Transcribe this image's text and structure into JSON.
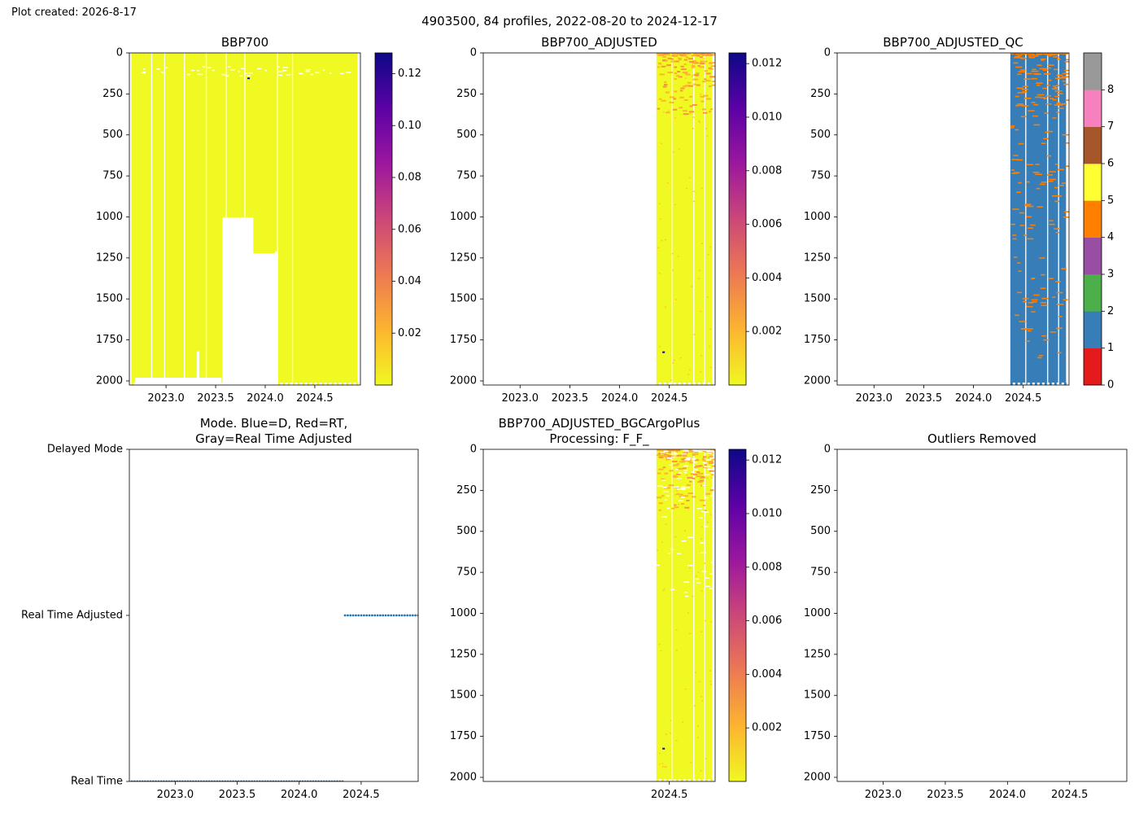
{
  "header": {
    "created": "Plot created: 2026-8-17",
    "suptitle": "4903500, 84 profiles, 2022-08-20 to 2024-12-17"
  },
  "colors": {
    "plasma_r": [
      "#f0f921",
      "#fdb42f",
      "#ed7953",
      "#cc4778",
      "#9c179e",
      "#5c01a6",
      "#0d0887"
    ],
    "qc": [
      "#e41a1c",
      "#377eb8",
      "#4daf4a",
      "#984ea3",
      "#ff7f00",
      "#ffff33",
      "#a65628",
      "#f781bf",
      "#999999"
    ],
    "mode_dots": "#1f77b4",
    "qc_flag_marks": "#ff7f00"
  },
  "chart_data": [
    {
      "id": "bbp700",
      "type": "heatmap",
      "title": "BBP700",
      "x_ticks": [
        "2023.0",
        "2023.5",
        "2024.0",
        "2024.5"
      ],
      "xlim": [
        2022.63,
        2024.96
      ],
      "y_ticks": [
        "0",
        "250",
        "500",
        "750",
        "1000",
        "1250",
        "1500",
        "1750",
        "2000"
      ],
      "ylim": [
        2025,
        0
      ],
      "data_x": [
        2022.65,
        2024.93
      ],
      "colorbar": {
        "ticks": [
          "0.02",
          "0.04",
          "0.06",
          "0.08",
          "0.10",
          "0.12"
        ],
        "min": 0.0,
        "max": 0.128,
        "colormap": "plasma_r"
      }
    },
    {
      "id": "bbp700_adjusted",
      "type": "heatmap",
      "title": "BBP700_ADJUSTED",
      "x_ticks": [
        "2023.0",
        "2023.5",
        "2024.0",
        "2024.5"
      ],
      "xlim": [
        2022.63,
        2024.96
      ],
      "y_ticks": [
        "0",
        "250",
        "500",
        "750",
        "1000",
        "1250",
        "1500",
        "1750",
        "2000"
      ],
      "ylim": [
        2025,
        0
      ],
      "data_x": [
        2024.37,
        2024.93
      ],
      "colorbar": {
        "ticks": [
          "0.002",
          "0.004",
          "0.006",
          "0.008",
          "0.010",
          "0.012"
        ],
        "min": 0.0,
        "max": 0.0124,
        "colormap": "plasma_r"
      }
    },
    {
      "id": "bbp700_adjusted_qc",
      "type": "heatmap",
      "title": "BBP700_ADJUSTED_QC",
      "x_ticks": [
        "2023.0",
        "2023.5",
        "2024.0",
        "2024.5"
      ],
      "xlim": [
        2022.63,
        2024.96
      ],
      "y_ticks": [
        "0",
        "250",
        "500",
        "750",
        "1000",
        "1250",
        "1500",
        "1750",
        "2000"
      ],
      "ylim": [
        2025,
        0
      ],
      "data_x": [
        2024.37,
        2024.93
      ],
      "colorbar": {
        "ticks": [
          "0",
          "1",
          "2",
          "3",
          "4",
          "5",
          "6",
          "7",
          "8"
        ],
        "min": 0,
        "max": 9,
        "colormap": "qc"
      }
    },
    {
      "id": "mode",
      "type": "scatter",
      "title_lines": [
        "Mode. Blue=D, Red=RT,",
        "Gray=Real Time Adjusted"
      ],
      "x_ticks": [
        "2023.0",
        "2023.5",
        "2024.0",
        "2024.5"
      ],
      "xlim": [
        2022.63,
        2024.96
      ],
      "y_categories": [
        "Real Time",
        "Real Time Adjusted",
        "Delayed Mode"
      ],
      "series": [
        {
          "category": "Real Time",
          "x_range": [
            2022.65,
            2024.35
          ]
        },
        {
          "category": "Real Time Adjusted",
          "x_range": [
            2024.37,
            2024.96
          ]
        }
      ]
    },
    {
      "id": "bgcargoplus",
      "type": "heatmap",
      "title_lines": [
        "BBP700_ADJUSTED_BGCArgoPlus",
        "Processing: F_F_"
      ],
      "x_ticks": [
        "2024.5"
      ],
      "xlim": [
        2022.63,
        2024.96
      ],
      "y_ticks": [
        "0",
        "250",
        "500",
        "750",
        "1000",
        "1250",
        "1500",
        "1750",
        "2000"
      ],
      "ylim": [
        2025,
        0
      ],
      "data_x": [
        2024.37,
        2024.93
      ],
      "colorbar": {
        "ticks": [
          "0.002",
          "0.004",
          "0.006",
          "0.008",
          "0.010",
          "0.012"
        ],
        "min": 0.0,
        "max": 0.0124,
        "colormap": "plasma_r"
      }
    },
    {
      "id": "outliers",
      "type": "heatmap",
      "title": "Outliers Removed",
      "x_ticks": [
        "2023.0",
        "2023.5",
        "2024.0",
        "2024.5"
      ],
      "xlim": [
        2022.63,
        2024.96
      ],
      "y_ticks": [
        "0",
        "250",
        "500",
        "750",
        "1000",
        "1250",
        "1500",
        "1750",
        "2000"
      ],
      "ylim": [
        2025,
        0
      ]
    }
  ]
}
